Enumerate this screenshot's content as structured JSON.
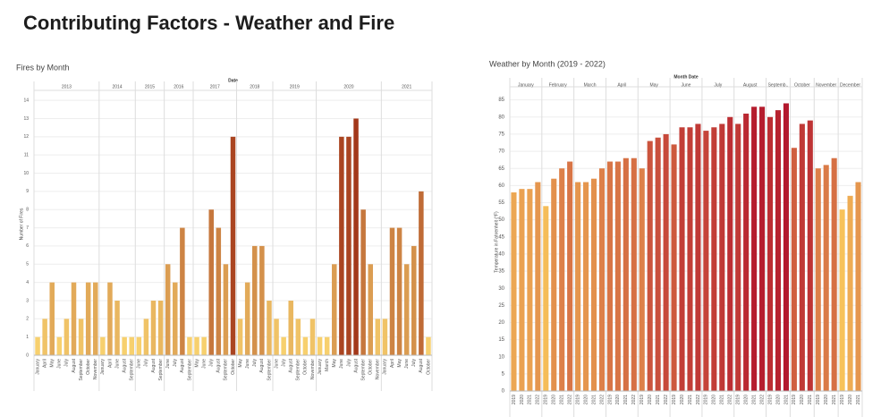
{
  "title": "Contributing Factors - Weather and Fire",
  "chart_data": [
    {
      "type": "bar",
      "title": "Fires by Month",
      "header": "Date",
      "y_label": "Number of Fires",
      "ylim": [
        0,
        14.4
      ],
      "yticks": [
        0,
        1,
        2,
        3,
        4,
        5,
        6,
        7,
        8,
        9,
        10,
        11,
        12,
        13,
        14
      ],
      "grid": true,
      "color_range": [
        "#f7d06e",
        "#a3381a"
      ],
      "groups": [
        {
          "label": "2013",
          "categories": [
            "January",
            "April",
            "May",
            "June",
            "July",
            "August",
            "September",
            "October",
            "November"
          ],
          "values": [
            1,
            2,
            4,
            1,
            2,
            4,
            2,
            4,
            4
          ]
        },
        {
          "label": "2014",
          "categories": [
            "January",
            "April",
            "June",
            "August",
            "September"
          ],
          "values": [
            1,
            4,
            3,
            1,
            1
          ]
        },
        {
          "label": "2015",
          "categories": [
            "June",
            "July",
            "August",
            "September"
          ],
          "values": [
            1,
            2,
            3,
            3
          ]
        },
        {
          "label": "2016",
          "categories": [
            "June",
            "July",
            "August",
            "September"
          ],
          "values": [
            5,
            4,
            7,
            1
          ]
        },
        {
          "label": "2017",
          "categories": [
            "May",
            "June",
            "July",
            "August",
            "September",
            "October"
          ],
          "values": [
            1,
            1,
            8,
            7,
            5,
            12
          ]
        },
        {
          "label": "2018",
          "categories": [
            "May",
            "June",
            "July",
            "August",
            "September"
          ],
          "values": [
            2,
            4,
            6,
            6,
            3
          ]
        },
        {
          "label": "2019",
          "categories": [
            "June",
            "July",
            "August",
            "September",
            "October",
            "November"
          ],
          "values": [
            2,
            1,
            3,
            2,
            1,
            2
          ]
        },
        {
          "label": "2020",
          "categories": [
            "January",
            "March",
            "May",
            "June",
            "July",
            "August",
            "September",
            "October",
            "November"
          ],
          "values": [
            1,
            1,
            5,
            12,
            12,
            13,
            8,
            5,
            2
          ]
        },
        {
          "label": "2021",
          "categories": [
            "January",
            "April",
            "May",
            "June",
            "July",
            "August",
            "October"
          ],
          "values": [
            2,
            7,
            7,
            5,
            6,
            9,
            1
          ]
        }
      ]
    },
    {
      "type": "bar",
      "title": "Weather by Month (2019 - 2022)",
      "header": "Month Date",
      "y_label": "Temperature in Fahrenheit (°F)",
      "ylim": [
        0,
        87
      ],
      "yticks": [
        0,
        5,
        10,
        15,
        20,
        25,
        30,
        35,
        40,
        45,
        50,
        55,
        60,
        65,
        70,
        75,
        80,
        85
      ],
      "grid": true,
      "color_range": [
        "#f7c25a",
        "#b3182d"
      ],
      "groups": [
        {
          "label": "January",
          "categories": [
            "2019",
            "2020",
            "2021",
            "2022"
          ],
          "values": [
            58,
            59,
            59,
            61
          ]
        },
        {
          "label": "February",
          "categories": [
            "2019",
            "2020",
            "2021",
            "2022"
          ],
          "values": [
            54,
            62,
            65,
            67
          ]
        },
        {
          "label": "March",
          "categories": [
            "2019",
            "2020",
            "2021",
            "2022"
          ],
          "values": [
            61,
            61,
            62,
            65
          ]
        },
        {
          "label": "April",
          "categories": [
            "2019",
            "2020",
            "2021",
            "2022"
          ],
          "values": [
            67,
            67,
            68,
            68
          ]
        },
        {
          "label": "May",
          "categories": [
            "2019",
            "2020",
            "2021",
            "2022"
          ],
          "values": [
            65,
            73,
            74,
            75
          ]
        },
        {
          "label": "June",
          "categories": [
            "2019",
            "2020",
            "2021",
            "2022"
          ],
          "values": [
            72,
            77,
            77,
            78
          ]
        },
        {
          "label": "July",
          "categories": [
            "2019",
            "2020",
            "2021",
            "2022"
          ],
          "values": [
            76,
            77,
            78,
            80
          ]
        },
        {
          "label": "August",
          "categories": [
            "2019",
            "2020",
            "2021",
            "2022"
          ],
          "values": [
            78,
            81,
            83,
            83
          ]
        },
        {
          "label": "Septemb..",
          "categories": [
            "2019",
            "2020",
            "2021"
          ],
          "values": [
            80,
            82,
            84
          ]
        },
        {
          "label": "October",
          "categories": [
            "2019",
            "2020",
            "2021"
          ],
          "values": [
            71,
            78,
            79
          ]
        },
        {
          "label": "November",
          "categories": [
            "2019",
            "2020",
            "2021"
          ],
          "values": [
            65,
            66,
            68
          ]
        },
        {
          "label": "December",
          "categories": [
            "2019",
            "2020",
            "2021"
          ],
          "values": [
            53,
            57,
            61
          ]
        }
      ]
    }
  ]
}
